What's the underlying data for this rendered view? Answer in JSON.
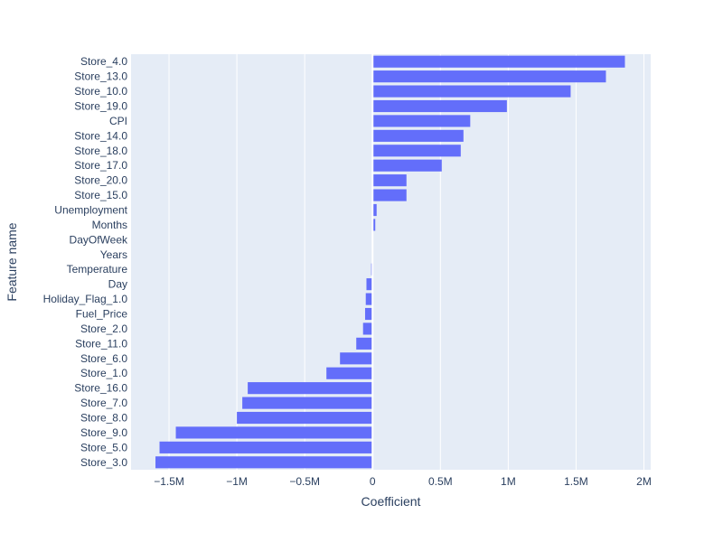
{
  "chart_data": {
    "type": "bar",
    "orientation": "horizontal",
    "xlabel": "Coefficient",
    "ylabel": "Feature name",
    "xlim": [
      -1.78,
      2.05
    ],
    "x_unit": "millions",
    "x_ticks": [
      -1.5,
      -1,
      -0.5,
      0,
      0.5,
      1,
      1.5,
      2
    ],
    "x_tick_labels": [
      "−1.5M",
      "−1M",
      "−0.5M",
      "0",
      "0.5M",
      "1M",
      "1.5M",
      "2M"
    ],
    "grid": true,
    "colors": {
      "bar": "#636efa",
      "plot_bg": "#e5ecf6",
      "grid": "#ffffff",
      "text": "#2a3f5f"
    },
    "categories": [
      "Store_4.0",
      "Store_13.0",
      "Store_10.0",
      "Store_19.0",
      "CPI",
      "Store_14.0",
      "Store_18.0",
      "Store_17.0",
      "Store_20.0",
      "Store_15.0",
      "Unemployment",
      "Months",
      "DayOfWeek",
      "Years",
      "Temperature",
      "Day",
      "Holiday_Flag_1.0",
      "Fuel_Price",
      "Store_2.0",
      "Store_11.0",
      "Store_6.0",
      "Store_1.0",
      "Store_16.0",
      "Store_7.0",
      "Store_8.0",
      "Store_9.0",
      "Store_5.0",
      "Store_3.0"
    ],
    "values": [
      1.86,
      1.72,
      1.46,
      0.99,
      0.72,
      0.67,
      0.65,
      0.51,
      0.25,
      0.25,
      0.03,
      0.02,
      0.003,
      -0.005,
      -0.01,
      -0.045,
      -0.05,
      -0.055,
      -0.07,
      -0.12,
      -0.24,
      -0.34,
      -0.92,
      -0.96,
      -1.0,
      -1.45,
      -1.57,
      -1.6
    ]
  }
}
